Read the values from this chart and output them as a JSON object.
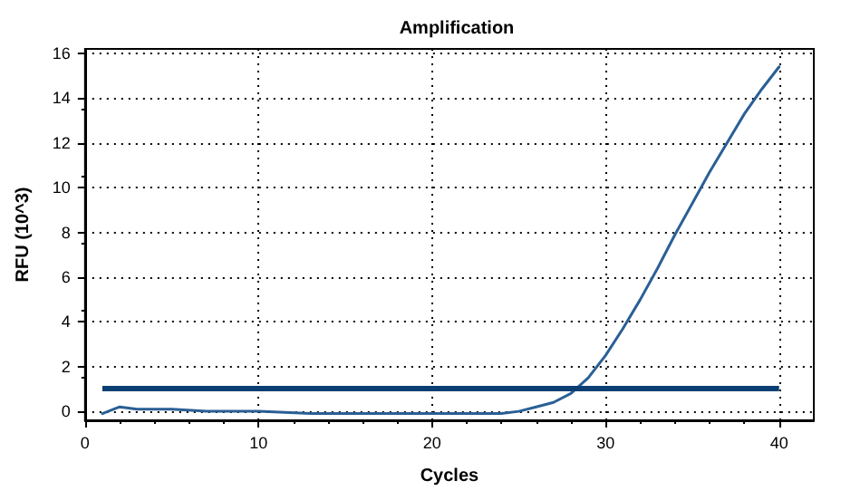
{
  "chart_data": {
    "type": "line",
    "title": "Amplification",
    "xlabel": "Cycles",
    "ylabel": "RFU (10^3)",
    "x": [
      1,
      2,
      3,
      5,
      7,
      10,
      13,
      15,
      18,
      20,
      22,
      24,
      25,
      26,
      27,
      28,
      29,
      30,
      31,
      32,
      33,
      34,
      35,
      36,
      37,
      38,
      39,
      40
    ],
    "series": [
      {
        "color": "#2a5f96",
        "values": [
          -0.1,
          0.2,
          0.1,
          0.1,
          0,
          0,
          -0.1,
          -0.1,
          -0.1,
          -0.1,
          -0.1,
          -0.1,
          0,
          0.2,
          0.4,
          0.8,
          1.5,
          2.5,
          3.7,
          5.0,
          6.4,
          7.9,
          9.3,
          10.7,
          12.0,
          13.3,
          14.4,
          15.4
        ]
      }
    ],
    "ref_lines": [
      {
        "axis": "y",
        "value": 1,
        "color": "#0b3f73"
      }
    ],
    "xlim": [
      0,
      42
    ],
    "xticks": [
      0,
      10,
      20,
      30,
      40
    ],
    "ylim": [
      -0.4,
      16.2
    ],
    "yticks": [
      0,
      2,
      4,
      6,
      8,
      10,
      12,
      14,
      16
    ],
    "grid": true,
    "marker": "none",
    "line_style": "solid"
  }
}
